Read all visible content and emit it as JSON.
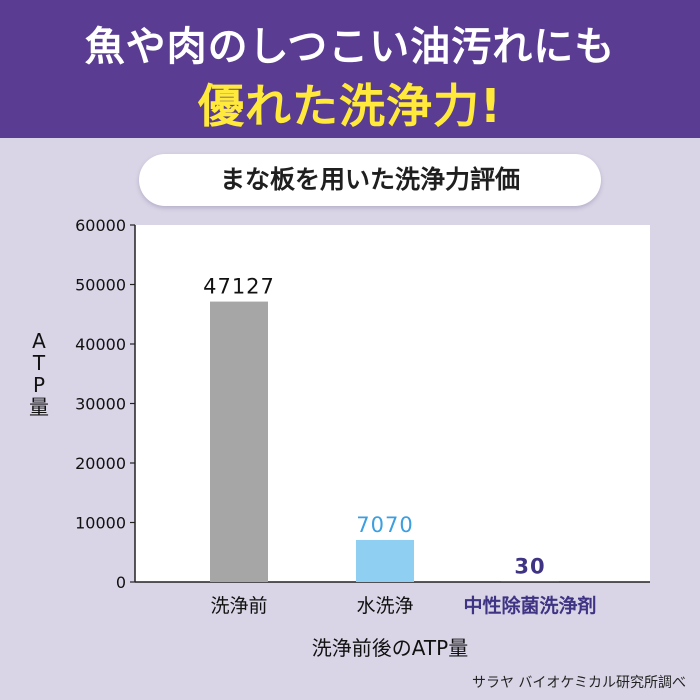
{
  "banner": {
    "line1": "魚や肉のしつこい油汚れにも",
    "line2": "優れた洗浄力!"
  },
  "subtitle": "まな板を用いた洗浄力評価",
  "source": "サラヤ バイオケミカル研究所調べ",
  "chart_data": {
    "type": "bar",
    "categories": [
      "洗浄前",
      "水洗浄",
      "中性除菌洗浄剤"
    ],
    "values": [
      47127,
      7070,
      30
    ],
    "data_labels": [
      "47127",
      "7070",
      "30"
    ],
    "ylabel": "ATP量",
    "xlabel": "洗浄前後のATP量",
    "ylim": [
      0,
      60000
    ],
    "yticks": [
      0,
      10000,
      20000,
      30000,
      40000,
      50000,
      60000
    ],
    "grid": false,
    "bar_colors": [
      "#a6a6a6",
      "#8fd0f2",
      "#4a3c8c"
    ],
    "label_colors": [
      "#111111",
      "#3b9fe0",
      "#3f3484"
    ],
    "category_label_colors": [
      "#111111",
      "#111111",
      "#3f3484"
    ]
  }
}
